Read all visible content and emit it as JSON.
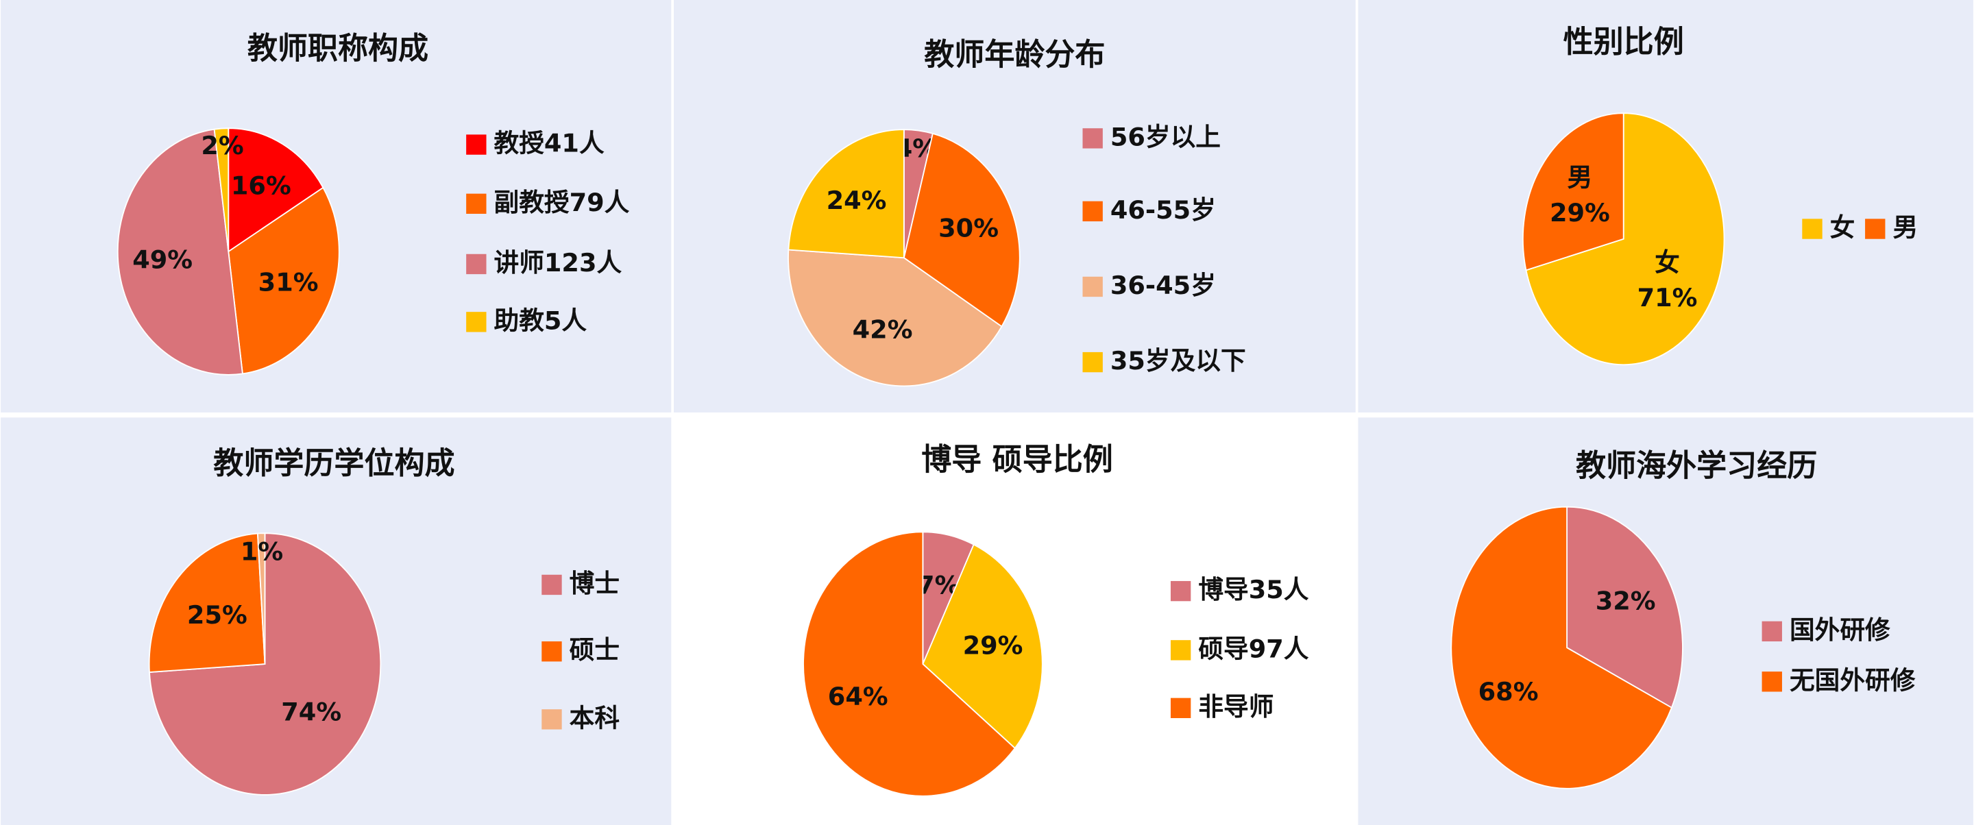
{
  "chart_data": [
    {
      "type": "pie",
      "title": "教师职称构成",
      "categories": [
        "教授41人",
        "副教授79人",
        "讲师123人",
        "助教5人"
      ],
      "values": [
        16,
        31,
        49,
        2
      ],
      "value_labels": [
        "16%",
        "31%",
        "49%",
        "2%"
      ],
      "colors": [
        "#ff0000",
        "#ff6600",
        "#d9737a",
        "#ffc000"
      ]
    },
    {
      "type": "pie",
      "title": "教师年龄分布",
      "categories": [
        "56岁以上",
        "46-55岁",
        "36-45岁",
        "35岁及以下"
      ],
      "values": [
        4,
        30,
        42,
        24
      ],
      "value_labels": [
        "4%",
        "30%",
        "42%",
        "24%"
      ],
      "colors": [
        "#d9737a",
        "#ff6600",
        "#f4b183",
        "#ffc000"
      ]
    },
    {
      "type": "pie",
      "title": "性别比例",
      "categories": [
        "女",
        "男"
      ],
      "values": [
        71,
        29
      ],
      "value_labels": [
        "71%",
        "29%"
      ],
      "colors": [
        "#ffc000",
        "#ff6600"
      ]
    },
    {
      "type": "pie",
      "title": "教师学历学位构成",
      "categories": [
        "博士",
        "硕士",
        "本科"
      ],
      "values": [
        74,
        25,
        1
      ],
      "value_labels": [
        "74%",
        "25%",
        "1%"
      ],
      "colors": [
        "#d9737a",
        "#ff6600",
        "#f4b183"
      ]
    },
    {
      "type": "pie",
      "title": "博导 硕导比例",
      "categories": [
        "博导35人",
        "硕导97人",
        "非导师"
      ],
      "values": [
        7,
        29,
        64
      ],
      "value_labels": [
        "7%",
        "29%",
        "64%"
      ],
      "colors": [
        "#d9737a",
        "#ffc000",
        "#ff6600"
      ]
    },
    {
      "type": "pie",
      "title": "教师海外学习经历",
      "categories": [
        "国外研修",
        "无国外研修"
      ],
      "values": [
        32,
        68
      ],
      "value_labels": [
        "32%",
        "68%"
      ],
      "colors": [
        "#d9737a",
        "#ff6600"
      ]
    }
  ]
}
